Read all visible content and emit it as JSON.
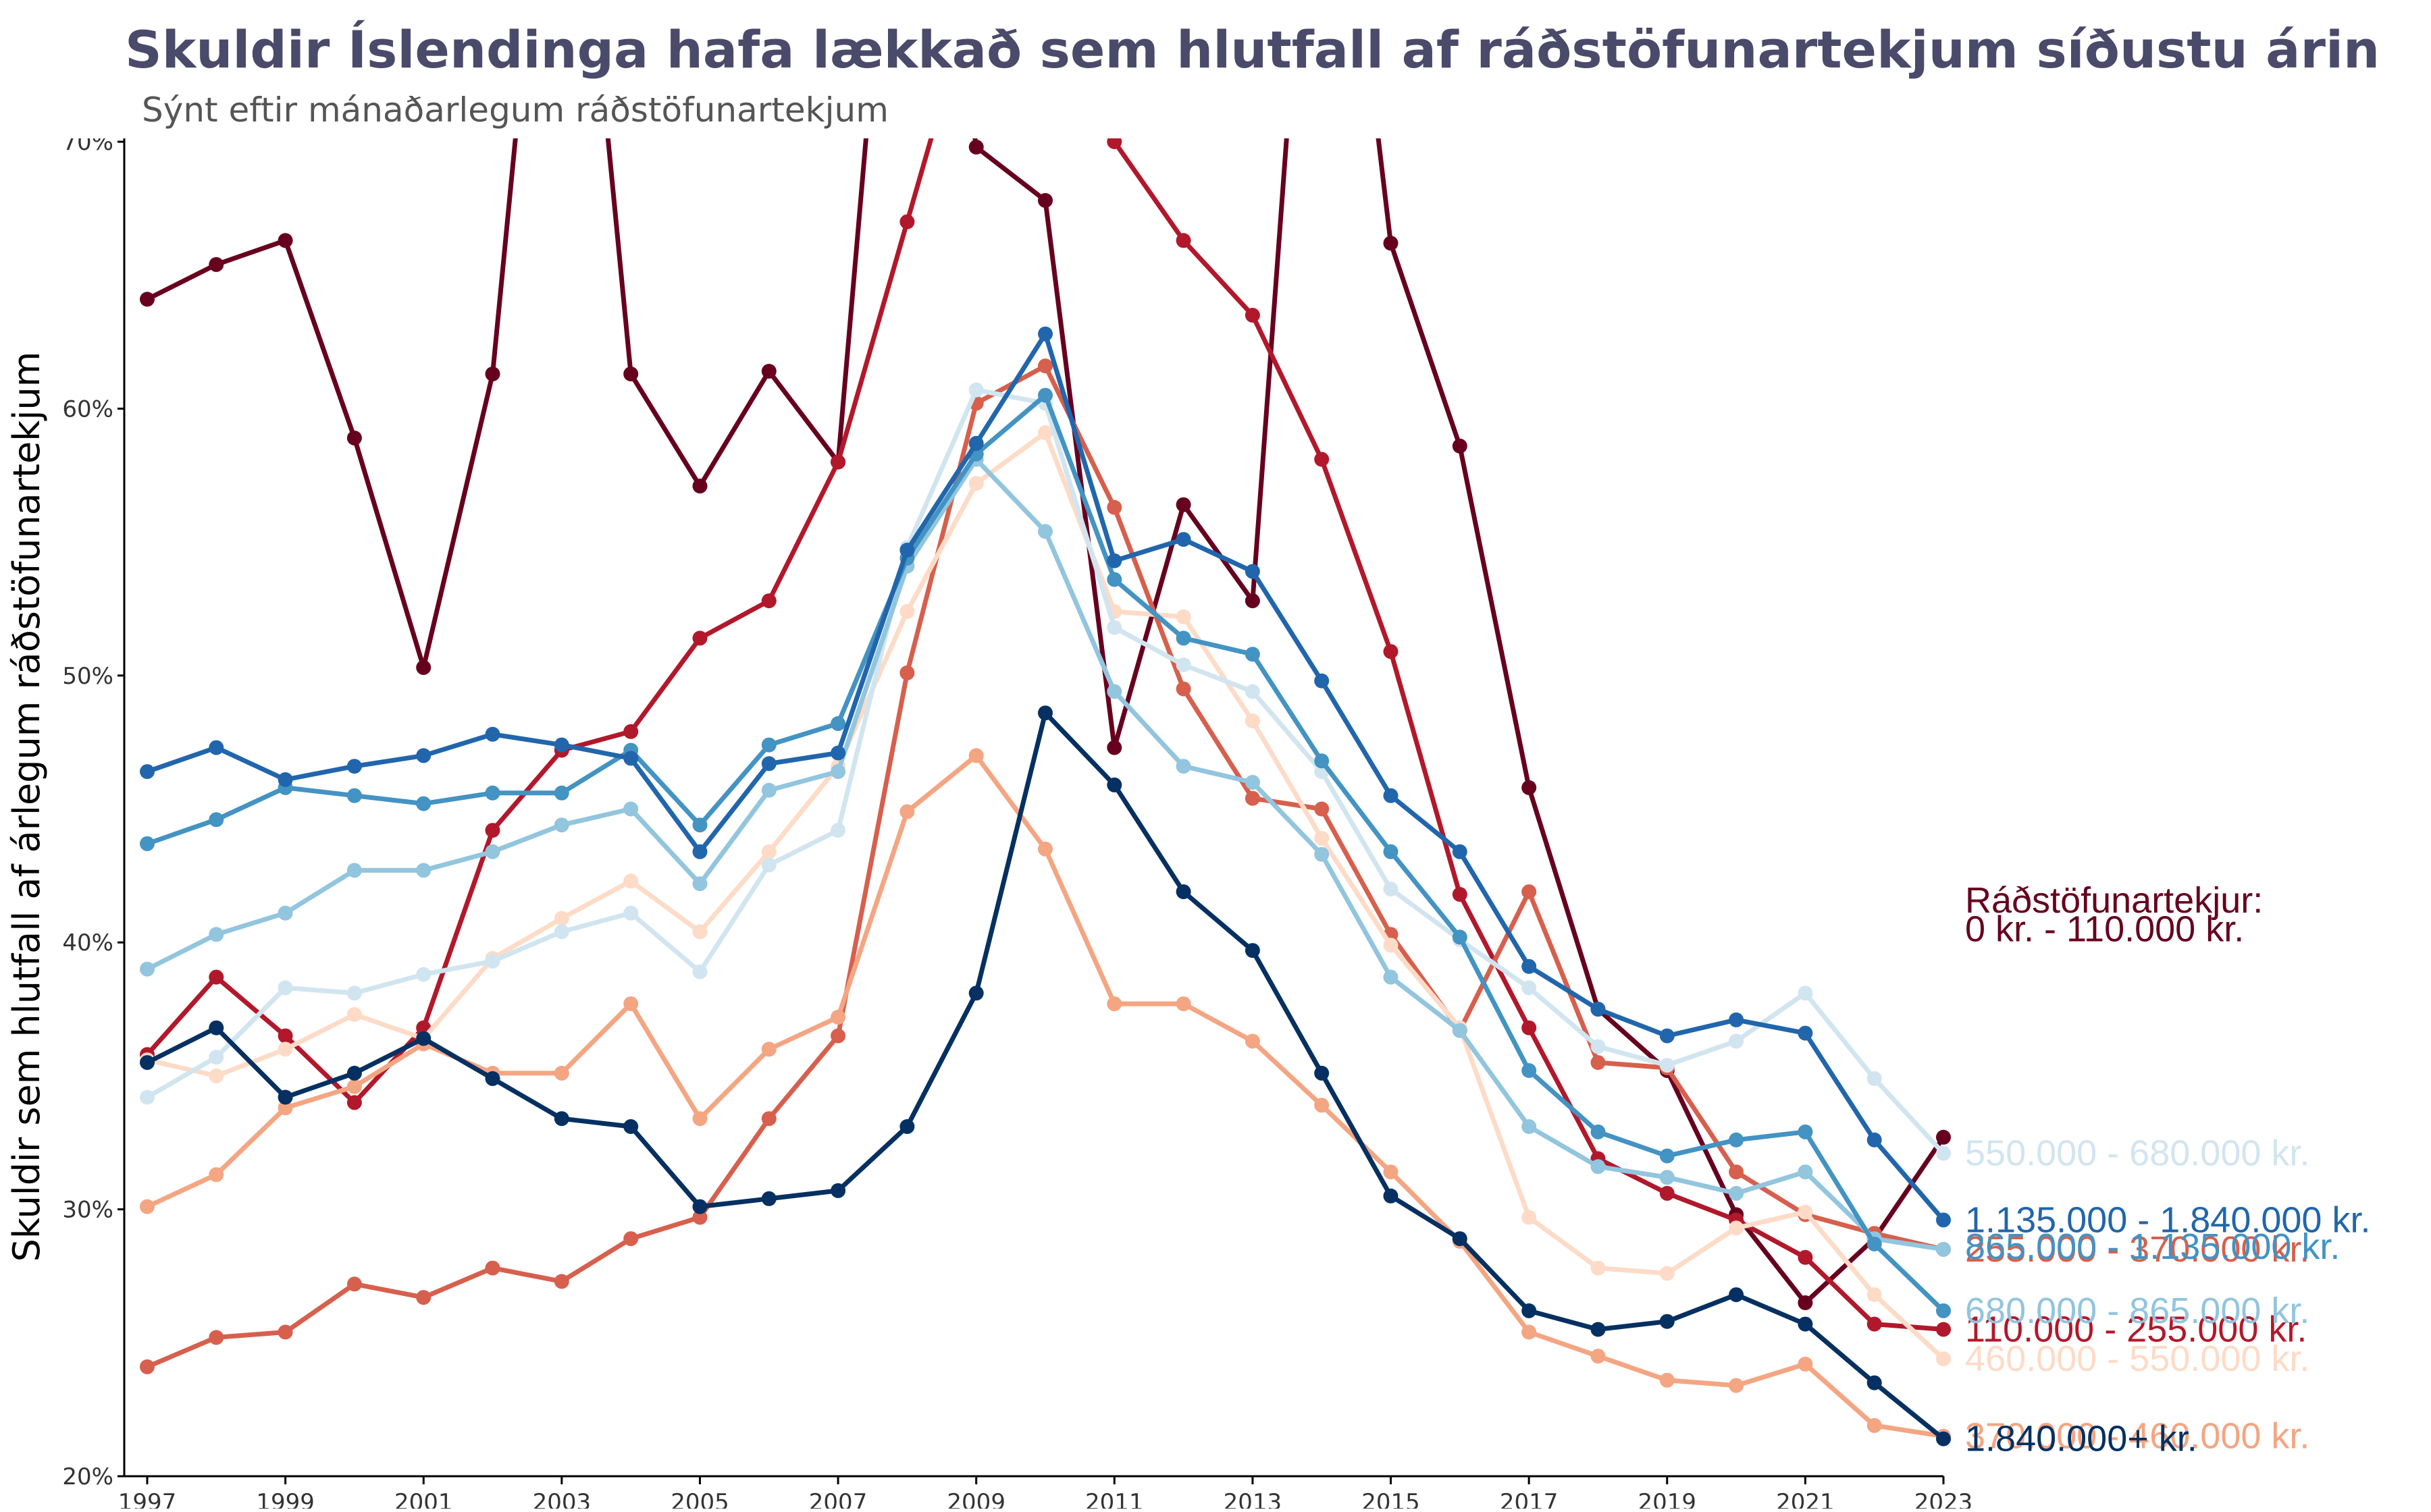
{
  "chart_data": {
    "type": "line",
    "title": "Skuldir Íslendinga hafa lækkað sem hlutfall af ráðstöfunartekjum síðustu árin",
    "subtitle": "Sýnt eftir mánaðarlegum ráðstöfunartekjum",
    "ylabel": "Skuldir sem hlutfall af árlegum ráðstöfunartekjum",
    "xlabel": "",
    "legend_title": "Ráðstöfunartekjur:",
    "ylim": [
      20,
      70
    ],
    "xlim": [
      1997,
      2023
    ],
    "grid": false,
    "x": [
      1997,
      1998,
      1999,
      2000,
      2001,
      2002,
      2003,
      2004,
      2005,
      2006,
      2007,
      2008,
      2009,
      2010,
      2011,
      2012,
      2013,
      2014,
      2015,
      2016,
      2017,
      2018,
      2019,
      2020,
      2021,
      2022,
      2023
    ],
    "x_ticks": [
      "1997",
      "1999",
      "2001",
      "2003",
      "2005",
      "2007",
      "2009",
      "2011",
      "2013",
      "2015",
      "2017",
      "2019",
      "2021",
      "2023"
    ],
    "y_ticks": [
      "20%",
      "30%",
      "40%",
      "50%",
      "60%",
      "70%"
    ],
    "series": [
      {
        "name": "0 kr. - 110.000 kr.",
        "color": "#67001f",
        "values": [
          64.1,
          65.4,
          66.3,
          58.9,
          50.3,
          61.3,
          88,
          61.3,
          57.1,
          61.4,
          58.0,
          88,
          69.8,
          67.8,
          47.3,
          56.4,
          52.8,
          88,
          66.2,
          58.6,
          45.8,
          37.5,
          35.2,
          29.8,
          26.5,
          28.9,
          32.7
        ]
      },
      {
        "name": "110.000 - 255.000 kr.",
        "color": "#b2182b",
        "values": [
          35.8,
          38.7,
          36.5,
          34.0,
          36.8,
          44.2,
          47.2,
          47.9,
          51.4,
          52.8,
          58.0,
          67.0,
          76,
          76,
          70,
          66.3,
          63.5,
          58.1,
          50.9,
          41.8,
          36.8,
          31.9,
          30.6,
          29.6,
          28.2,
          25.7,
          25.5
        ]
      },
      {
        "name": "255.000 - 370.000 kr.",
        "color": "#d6604d",
        "values": [
          24.1,
          25.2,
          25.4,
          27.2,
          26.7,
          27.8,
          27.3,
          28.9,
          29.7,
          33.4,
          36.5,
          50.1,
          60.2,
          61.6,
          56.3,
          49.5,
          45.4,
          45.0,
          40.3,
          36.7,
          41.9,
          35.5,
          35.3,
          31.4,
          29.8,
          29.1,
          28.5
        ]
      },
      {
        "name": "370.000 - 460.000 kr.",
        "color": "#f4a582",
        "values": [
          30.1,
          31.3,
          33.8,
          34.6,
          36.2,
          35.1,
          35.1,
          37.7,
          33.4,
          36.0,
          37.2,
          44.9,
          47.0,
          43.5,
          37.7,
          37.7,
          36.3,
          33.9,
          31.4,
          28.8,
          25.4,
          24.5,
          23.6,
          23.4,
          24.2,
          21.9,
          21.5
        ]
      },
      {
        "name": "460.000 - 550.000 kr.",
        "color": "#fddbc7",
        "values": [
          35.6,
          35.0,
          36.0,
          37.3,
          36.4,
          39.4,
          40.9,
          42.3,
          40.4,
          43.4,
          46.6,
          52.4,
          57.2,
          59.1,
          52.4,
          52.2,
          48.3,
          43.9,
          39.9,
          36.8,
          29.7,
          27.8,
          27.6,
          29.3,
          29.9,
          26.8,
          24.4
        ]
      },
      {
        "name": "550.000 - 680.000 kr.",
        "color": "#d1e5f0",
        "values": [
          34.2,
          35.7,
          38.3,
          38.1,
          38.8,
          39.3,
          40.4,
          41.1,
          38.9,
          42.9,
          44.2,
          54.8,
          60.7,
          60.2,
          51.8,
          50.4,
          49.4,
          46.4,
          42.0,
          40.1,
          38.3,
          36.1,
          35.4,
          36.3,
          38.1,
          34.9,
          32.1
        ]
      },
      {
        "name": "680.000 - 865.000 kr.",
        "color": "#92c5de",
        "values": [
          39.0,
          40.3,
          41.1,
          42.7,
          42.7,
          43.4,
          44.4,
          45.0,
          42.2,
          45.7,
          46.4,
          54.1,
          58.1,
          55.4,
          49.4,
          46.6,
          46.0,
          43.3,
          38.7,
          36.7,
          33.1,
          31.6,
          31.2,
          30.6,
          31.4,
          28.9,
          28.5
        ]
      },
      {
        "name": "865.000 - 1.135.000 kr.",
        "color": "#4393c3",
        "values": [
          43.7,
          44.6,
          45.8,
          45.5,
          45.2,
          45.6,
          45.6,
          47.2,
          44.4,
          47.4,
          48.2,
          54.4,
          58.3,
          60.5,
          53.6,
          51.4,
          50.8,
          46.8,
          43.4,
          40.2,
          35.2,
          32.9,
          32.0,
          32.6,
          32.9,
          28.7,
          26.2
        ]
      },
      {
        "name": "1.135.000 - 1.840.000 kr.",
        "color": "#2166ac",
        "values": [
          46.4,
          47.3,
          46.1,
          46.6,
          47.0,
          47.8,
          47.4,
          46.9,
          43.4,
          46.7,
          47.1,
          54.7,
          58.7,
          62.8,
          54.3,
          55.1,
          53.9,
          49.8,
          45.5,
          43.4,
          39.1,
          37.5,
          36.5,
          37.1,
          36.6,
          32.6,
          29.6
        ]
      },
      {
        "name": "1.840.000+ kr.",
        "color": "#053061",
        "values": [
          35.5,
          36.8,
          34.2,
          35.1,
          36.4,
          34.9,
          33.4,
          33.1,
          30.1,
          30.4,
          30.7,
          33.1,
          38.1,
          48.6,
          45.9,
          41.9,
          39.7,
          35.1,
          30.5,
          28.9,
          26.2,
          25.5,
          25.8,
          26.8,
          25.7,
          23.5,
          21.4
        ]
      }
    ]
  }
}
